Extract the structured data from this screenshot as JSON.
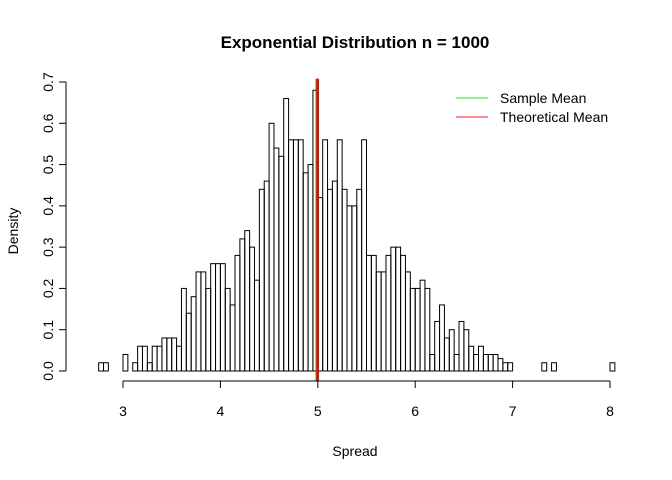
{
  "chart_data": {
    "type": "histogram",
    "title": "Exponential Distribution n = 1000",
    "xlabel": "Spread",
    "ylabel": "Density",
    "xlim": [
      2.75,
      8.0
    ],
    "ylim": [
      0,
      0.7
    ],
    "x_ticks": [
      "3",
      "4",
      "5",
      "6",
      "7",
      "8"
    ],
    "y_ticks": [
      "0.0",
      "0.1",
      "0.2",
      "0.3",
      "0.4",
      "0.5",
      "0.6",
      "0.7"
    ],
    "bin_width": 0.05,
    "bin_start": 2.75,
    "densities": [
      0.02,
      0.02,
      0.0,
      0.0,
      0.0,
      0.04,
      0.0,
      0.02,
      0.06,
      0.06,
      0.02,
      0.06,
      0.06,
      0.08,
      0.08,
      0.08,
      0.06,
      0.2,
      0.14,
      0.18,
      0.24,
      0.24,
      0.2,
      0.26,
      0.26,
      0.26,
      0.2,
      0.16,
      0.28,
      0.32,
      0.34,
      0.3,
      0.22,
      0.44,
      0.46,
      0.6,
      0.54,
      0.52,
      0.66,
      0.56,
      0.56,
      0.56,
      0.48,
      0.5,
      0.68,
      0.42,
      0.56,
      0.44,
      0.46,
      0.56,
      0.44,
      0.4,
      0.4,
      0.44,
      0.56,
      0.28,
      0.28,
      0.24,
      0.24,
      0.28,
      0.3,
      0.3,
      0.28,
      0.24,
      0.2,
      0.2,
      0.22,
      0.2,
      0.04,
      0.12,
      0.16,
      0.08,
      0.1,
      0.04,
      0.12,
      0.1,
      0.06,
      0.04,
      0.06,
      0.04,
      0.04,
      0.04,
      0.03,
      0.02,
      0.02,
      0.0,
      0.0,
      0.0,
      0.0,
      0.0,
      0.0,
      0.02,
      0.0,
      0.02,
      0.0,
      0.0,
      0.0,
      0.0,
      0.0,
      0.0,
      0.0,
      0.0,
      0.0,
      0.0,
      0.0,
      0.02
    ],
    "vlines": [
      {
        "name": "Sample Mean",
        "x": 4.99,
        "color": "#00aa00"
      },
      {
        "name": "Theoretical Mean",
        "x": 5.0,
        "color": "#ff0000"
      }
    ],
    "legend": {
      "placement": "top-right",
      "entries": [
        {
          "label": "Sample Mean",
          "color": "#7CE27C"
        },
        {
          "label": "Theoretical Mean",
          "color": "#FF6A6A"
        }
      ]
    },
    "grid": false
  }
}
